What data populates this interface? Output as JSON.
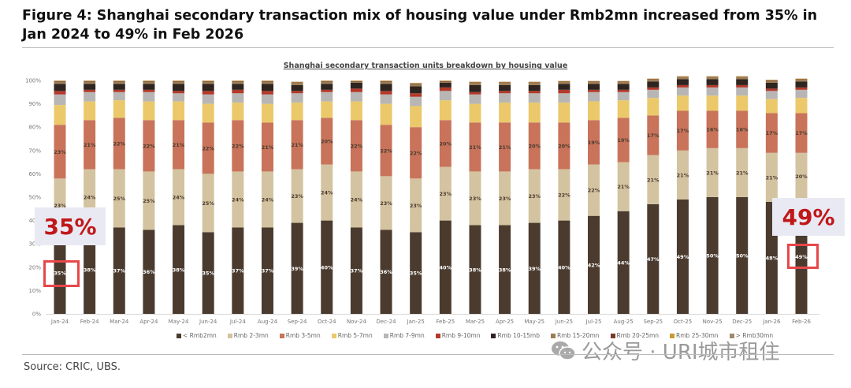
{
  "figure_title": "Figure 4: Shanghai secondary transaction mix of housing value under Rmb2mn increased from 35% in Jan 2024 to 49% in Feb 2026",
  "source": "Source: CRIC, UBS.",
  "watermark": "公众号 · URI城市租住",
  "callouts": {
    "start": "35%",
    "end": "49%"
  },
  "chart_data": {
    "type": "bar",
    "stacked": true,
    "title": "Shanghai secondary transaction units breakdown by housing value",
    "xlabel": "",
    "ylabel": "",
    "ylim": [
      0,
      100
    ],
    "yticks": [
      "0%",
      "10%",
      "20%",
      "30%",
      "40%",
      "50%",
      "60%",
      "70%",
      "80%",
      "90%",
      "100%"
    ],
    "legend_position": "bottom",
    "categories": [
      "Jan-24",
      "Feb-24",
      "Mar-24",
      "Apr-24",
      "May-24",
      "Jun-24",
      "Jul-24",
      "Aug-24",
      "Sep-24",
      "Oct-24",
      "Nov-24",
      "Dec-24",
      "Jan-25",
      "Feb-25",
      "Mar-25",
      "Apr-25",
      "May-25",
      "Jun-25",
      "Jul-25",
      "Aug-25",
      "Sep-25",
      "Oct-25",
      "Nov-25",
      "Dec-25",
      "Jan-26",
      "Feb-26"
    ],
    "series": [
      {
        "name": "< Rmb2mn",
        "color": "#4a3b2e",
        "label_color": "#ffffff",
        "labeled": true,
        "values": [
          35,
          38,
          37,
          36,
          38,
          35,
          37,
          37,
          39,
          40,
          37,
          36,
          35,
          40,
          38,
          38,
          39,
          40,
          42,
          44,
          47,
          49,
          50,
          50,
          48,
          49
        ]
      },
      {
        "name": "Rmb 2-3mn",
        "color": "#d4c3a0",
        "label_color": "#4a3b2e",
        "labeled": true,
        "values": [
          23,
          24,
          25,
          25,
          24,
          25,
          24,
          24,
          23,
          24,
          24,
          23,
          23,
          23,
          23,
          23,
          23,
          22,
          22,
          21,
          21,
          21,
          21,
          21,
          21,
          20
        ]
      },
      {
        "name": "Rmb 3-5mn",
        "color": "#c8735a",
        "label_color": "#4a3b2e",
        "labeled": true,
        "values": [
          23,
          21,
          22,
          22,
          21,
          22,
          22,
          21,
          21,
          20,
          22,
          22,
          22,
          20,
          21,
          21,
          20,
          20,
          19,
          19,
          17,
          17,
          16,
          16,
          17,
          17
        ]
      },
      {
        "name": "Rmb 5-7mn",
        "color": "#ebc96a",
        "labeled": false,
        "values": [
          8.5,
          8,
          7.5,
          8,
          8,
          8,
          7.5,
          8,
          7.5,
          7,
          8,
          9,
          9,
          8.5,
          8,
          8.5,
          8.5,
          8.5,
          8,
          7.5,
          7.5,
          6.5,
          6.5,
          6.5,
          6,
          6.5
        ]
      },
      {
        "name": "Rmb 7-9mn",
        "color": "#b8b6b4",
        "labeled": false,
        "values": [
          4.5,
          4,
          3.5,
          4,
          3.5,
          4,
          4,
          4,
          4,
          4,
          4,
          4,
          4,
          4,
          4,
          4,
          4,
          4,
          4,
          3.5,
          3.5,
          3.5,
          3.5,
          3.5,
          3.5,
          3.5
        ]
      },
      {
        "name": "Rmb 9-10mn",
        "color": "#b3392a",
        "labeled": false,
        "values": [
          1.5,
          1,
          1,
          1,
          1,
          1.5,
          1.5,
          1.5,
          1,
          1,
          1.5,
          1.5,
          1.5,
          1.5,
          1,
          1,
          1,
          1.5,
          1,
          1,
          1,
          1,
          1,
          1,
          1,
          1
        ]
      },
      {
        "name": "Rmb 10-15mb",
        "color": "#2e2420",
        "labeled": false,
        "values": [
          3,
          2.5,
          2.5,
          2.5,
          3,
          3,
          2.5,
          3,
          2.5,
          2.5,
          2.5,
          3,
          3,
          2,
          3,
          2.5,
          2.5,
          2.5,
          2.5,
          2.5,
          2.5,
          2.5,
          2.5,
          2.5,
          2.5,
          2.5
        ]
      },
      {
        "name": "Rmb 15-20mn",
        "color": "#9a7d55",
        "labeled": false,
        "values": [
          1,
          1,
          1,
          1,
          1,
          1,
          1,
          1,
          1,
          1,
          0.5,
          1,
          1,
          0.5,
          1,
          1,
          1,
          0.8,
          0.8,
          0.8,
          0.8,
          0.8,
          0.8,
          0.8,
          0.8,
          0.8
        ]
      },
      {
        "name": "Rmb 20-25mn",
        "color": "#7a3a2a",
        "labeled": false,
        "values": [
          0.2,
          0.2,
          0.2,
          0.2,
          0.2,
          0.2,
          0.2,
          0.2,
          0.2,
          0.2,
          0.2,
          0.2,
          0.2,
          0.2,
          0.2,
          0.2,
          0.2,
          0.2,
          0.2,
          0.2,
          0.2,
          0.2,
          0.2,
          0.2,
          0.2,
          0.2
        ]
      },
      {
        "name": "Rmb 25-30mn",
        "color": "#c89a30",
        "labeled": false,
        "values": [
          0.2,
          0.2,
          0.2,
          0.2,
          0.2,
          0.2,
          0.2,
          0.2,
          0.2,
          0.2,
          0.2,
          0.2,
          0.2,
          0.2,
          0.2,
          0.2,
          0.2,
          0.2,
          0.2,
          0.2,
          0.2,
          0.2,
          0.2,
          0.2,
          0.2,
          0.2
        ]
      },
      {
        "name": "> Rmb30mn",
        "color": "#a08a6a",
        "labeled": false,
        "values": [
          0.1,
          0.1,
          0.1,
          0.1,
          0.1,
          0.1,
          0.1,
          0.1,
          0.1,
          0.1,
          0.1,
          0.1,
          0.1,
          0.1,
          0.1,
          0.1,
          0.1,
          0.1,
          0.1,
          0.1,
          0.1,
          0.1,
          0.1,
          0.1,
          0.1,
          0.1
        ]
      }
    ],
    "highlighted": [
      {
        "category": "Jan-24",
        "series": "< Rmb2mn",
        "value": 35
      },
      {
        "category": "Feb-26",
        "series": "< Rmb2mn",
        "value": 49
      }
    ]
  }
}
